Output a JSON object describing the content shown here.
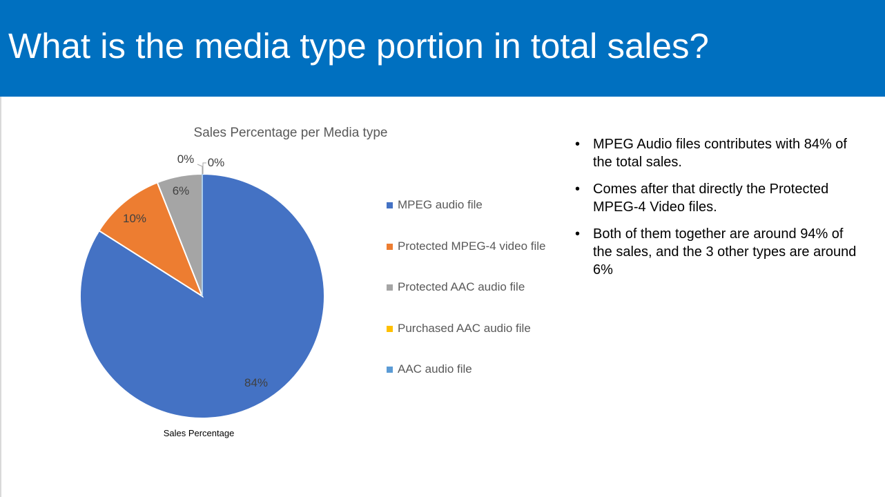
{
  "slide": {
    "title": "What is the media type portion in total sales?"
  },
  "chart_data": {
    "type": "pie",
    "title": "Sales Percentage per Media type",
    "series_caption": "Sales Percentage",
    "categories": [
      "MPEG audio file",
      "Protected MPEG-4 video file",
      "Protected AAC audio file",
      "Purchased AAC audio file",
      "AAC audio file"
    ],
    "values": [
      84,
      10,
      6,
      0,
      0
    ],
    "data_labels": [
      "84%",
      "10%",
      "6%",
      "0%",
      "0%"
    ],
    "colors": [
      "#4472c4",
      "#ed7d31",
      "#a5a5a5",
      "#ffc000",
      "#5b9bd5"
    ],
    "legend_position": "right",
    "start_angle": "12 o'clock",
    "direction": "clockwise"
  },
  "legend": {
    "items": [
      {
        "label": "MPEG audio file",
        "color": "#4472c4"
      },
      {
        "label": "Protected MPEG-4 video file",
        "color": "#ed7d31"
      },
      {
        "label": "Protected AAC audio file",
        "color": "#a5a5a5"
      },
      {
        "label": "Purchased AAC audio file",
        "color": "#ffc000"
      },
      {
        "label": "AAC audio file",
        "color": "#5b9bd5"
      }
    ]
  },
  "bullets": {
    "marker": "•",
    "items": [
      "MPEG Audio files contributes with 84% of the total sales.",
      "Comes after that directly the Protected MPEG-4 Video files.",
      "Both of them together are around 94% of the sales, and the 3 other types are around 6%"
    ]
  }
}
